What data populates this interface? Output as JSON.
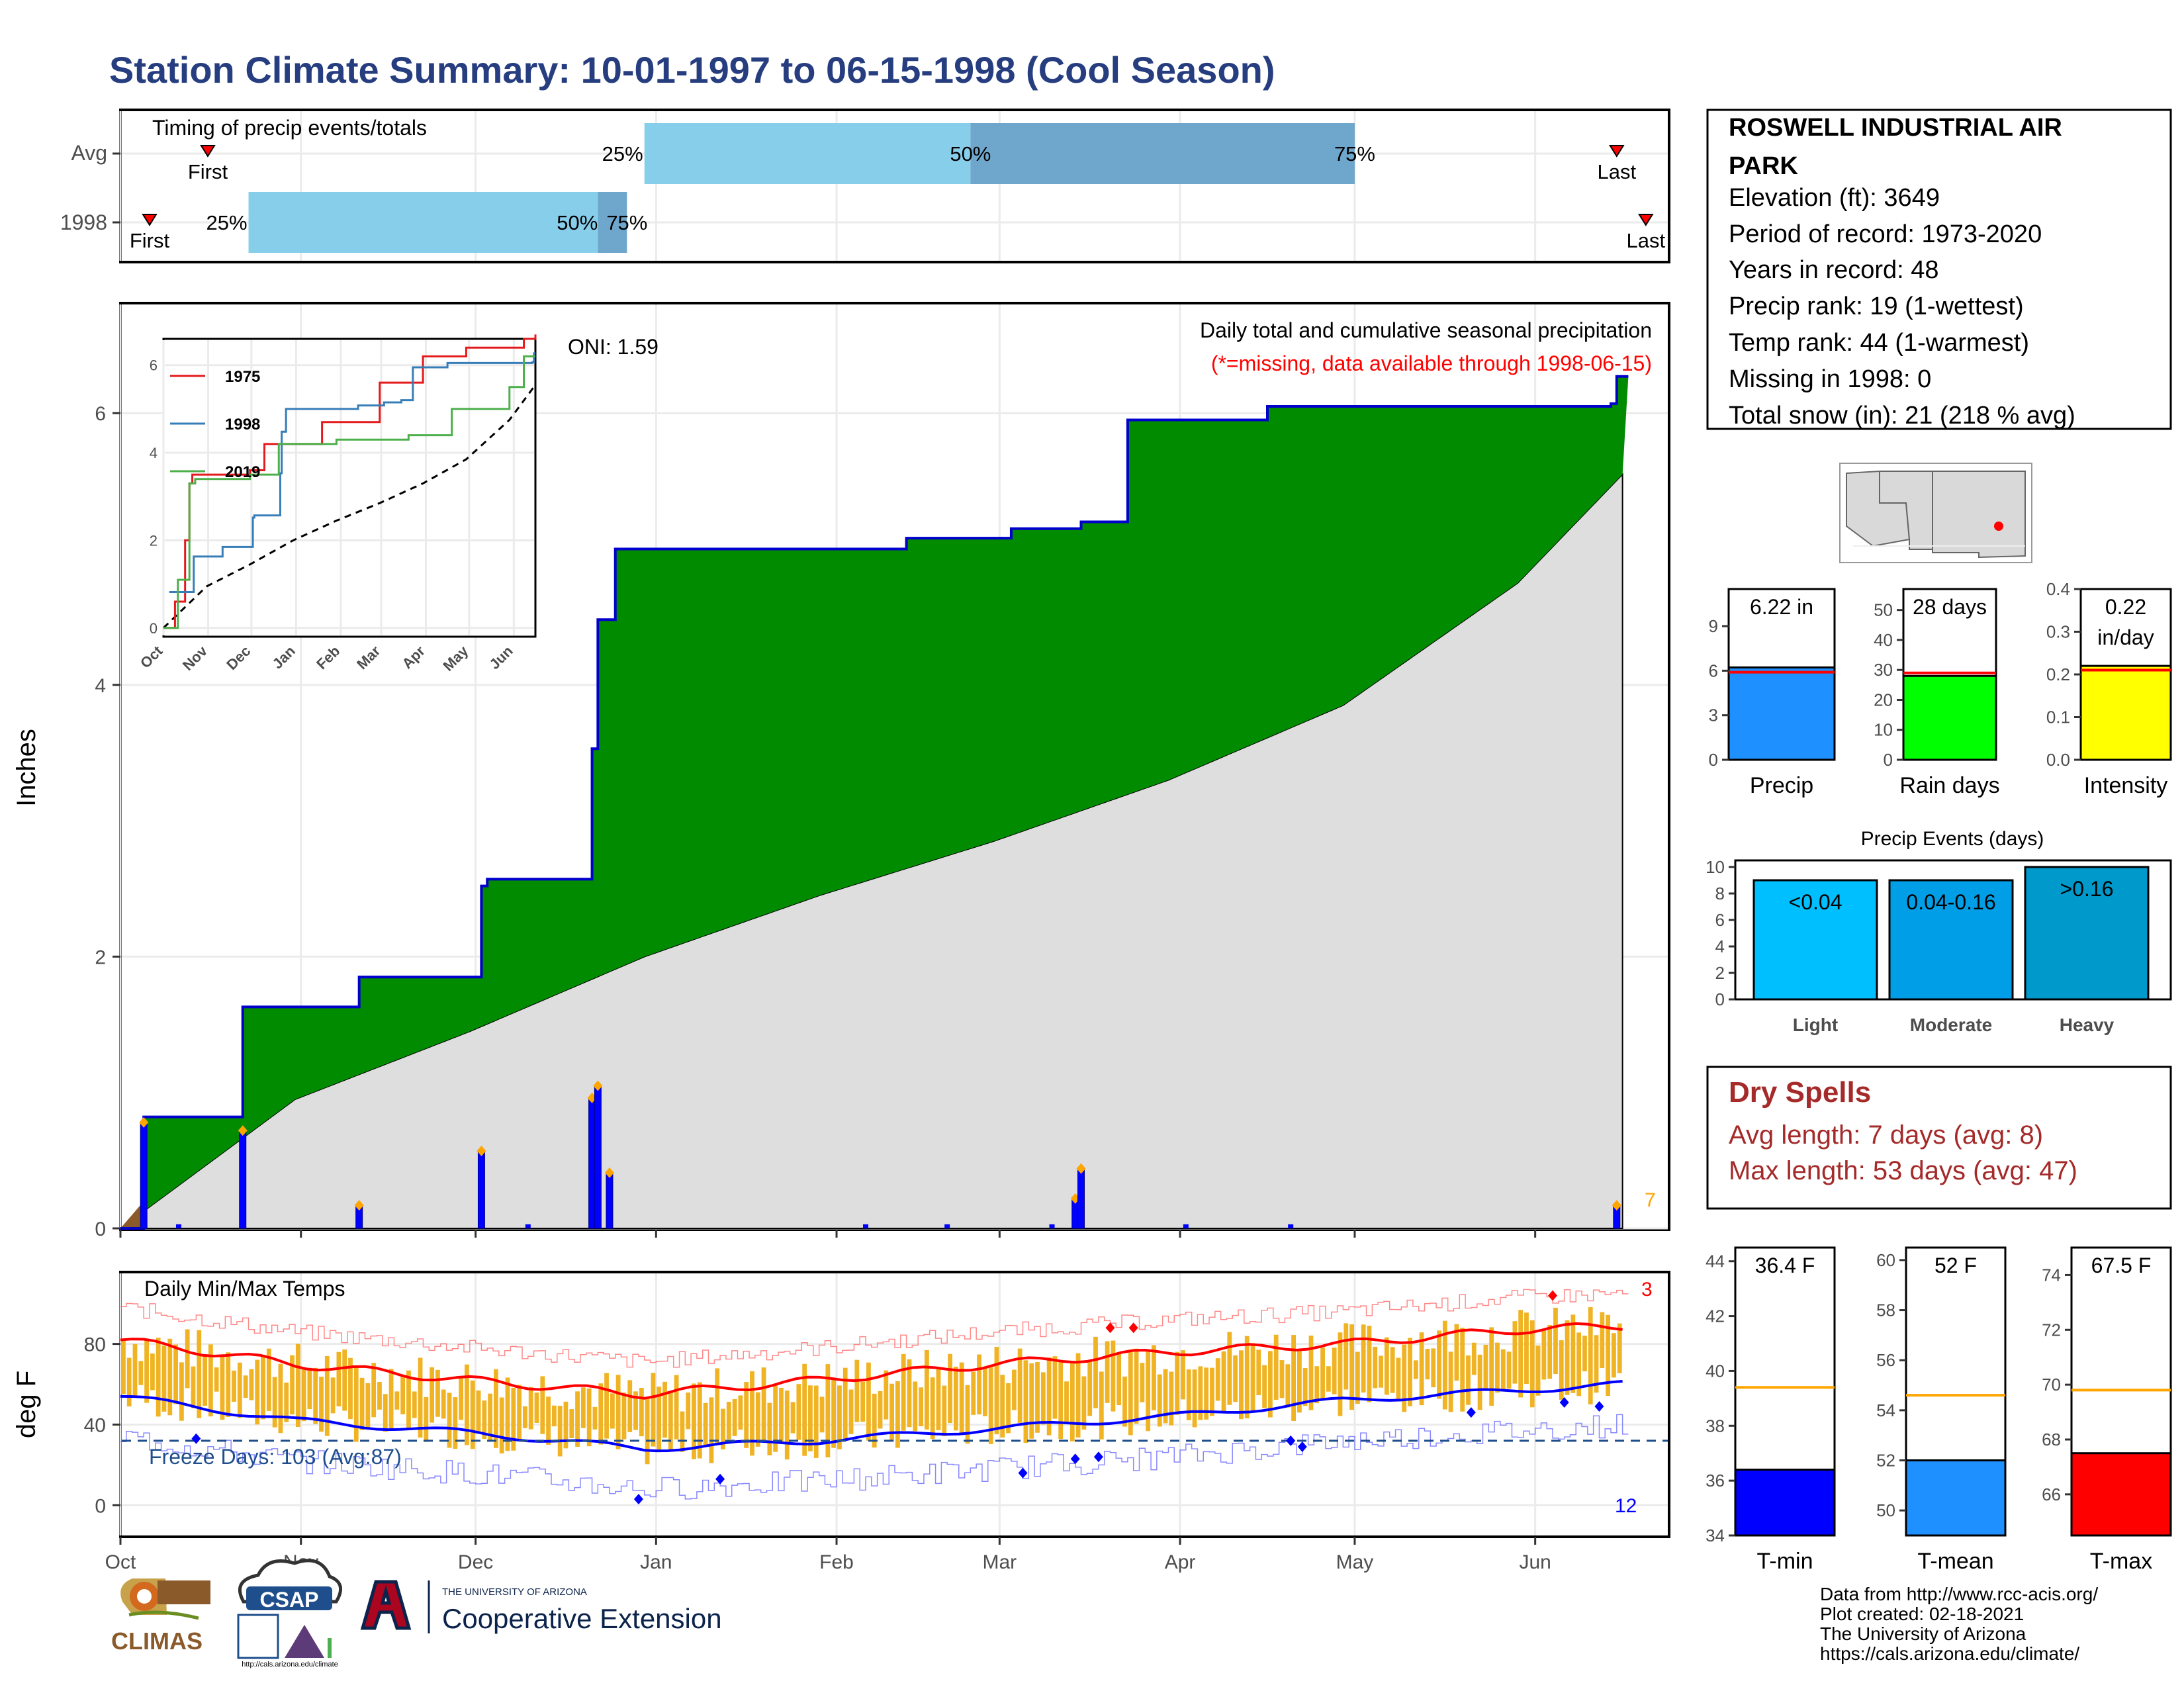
{
  "page": {
    "title": "Station Climate Summary: 10-01-1997 to 06-15-1998 (Cool Season)",
    "title_color": "#263e80"
  },
  "timing": {
    "panel_title": "Timing of precip events/totals",
    "rows": [
      {
        "label": "Avg",
        "q25": "25%",
        "q50": "50%",
        "q75": "75%",
        "first": "First",
        "last": "Last",
        "first_day": 15,
        "p25_day": 90,
        "p50_day": 146,
        "p75_day": 212,
        "last_day": 257
      },
      {
        "label": "1998",
        "q25": "25%",
        "q50": "50%",
        "q75": "75%",
        "first": "First",
        "last": "Last",
        "first_day": 5,
        "p25_day": 22,
        "p50_day": 82,
        "p75_day": 87,
        "last_day": 262
      }
    ]
  },
  "station": {
    "name": "ROSWELL INDUSTRIAL AIR PARK",
    "lines": [
      "Elevation (ft): 3649",
      "Period of record: 1973-2020",
      "Years in record: 48",
      "Precip rank: 19 (1-wettest)",
      "Temp rank: 44 (1-warmest)",
      "Missing in 1998: 0",
      "Total snow (in): 21 (218 % avg)"
    ]
  },
  "precip_main": {
    "ylabel": "Inches",
    "title": "Daily total and cumulative seasonal precipitation",
    "subtitle": "(*=missing, data available through 1998-06-15)",
    "oni": "ONI: 1.59",
    "corner_count": "7",
    "yticks": [
      "0",
      "2",
      "4",
      "6"
    ]
  },
  "inset": {
    "legend": [
      "1975",
      "1998",
      "2019"
    ],
    "colors": {
      "1975": "#e41a1c",
      "1998": "#377eb8",
      "2019": "#4daf4a"
    },
    "yticks": [
      "0",
      "2",
      "4",
      "6"
    ],
    "xticks": [
      "Oct",
      "Nov",
      "Dec",
      "Jan",
      "Feb",
      "Mar",
      "Apr",
      "May",
      "Jun"
    ]
  },
  "temps": {
    "title": "Daily Min/Max Temps",
    "ylabel": "deg F",
    "freeze_label": "Freeze Days: 103 (Avg:87)",
    "hot_count": "3",
    "cold_count": "12",
    "yticks": [
      "0",
      "40",
      "80"
    ]
  },
  "months": [
    "Oct",
    "Nov",
    "Dec",
    "Jan",
    "Feb",
    "Mar",
    "Apr",
    "May",
    "Jun"
  ],
  "bars": {
    "precip": {
      "value_label": "6.22 in",
      "name": "Precip",
      "yticks": [
        "0",
        "3",
        "6",
        "9"
      ]
    },
    "raindays": {
      "value_label": "28 days",
      "name": "Rain days",
      "yticks": [
        "0",
        "10",
        "20",
        "30",
        "40",
        "50"
      ]
    },
    "intensity": {
      "value_label": "0.22",
      "value_label2": "in/day",
      "name": "Intensity",
      "yticks": [
        "0.0",
        "0.1",
        "0.2",
        "0.3",
        "0.4"
      ]
    }
  },
  "events": {
    "title": "Precip Events (days)",
    "yticks": [
      "0",
      "2",
      "4",
      "6",
      "8",
      "10"
    ],
    "categories": [
      "Light",
      "Moderate",
      "Heavy"
    ],
    "labels": [
      "<0.04",
      "0.04-0.16",
      ">0.16"
    ]
  },
  "dry_spells": {
    "title": "Dry Spells",
    "avg": "Avg length: 7 days (avg: 8)",
    "max": "Max length: 53 days (avg: 47)",
    "color": "#a52a2a"
  },
  "temp_bars": {
    "tmin": {
      "label": "36.4 F",
      "name": "T-min",
      "yticks": [
        "34",
        "36",
        "38",
        "40",
        "42",
        "44"
      ]
    },
    "tmean": {
      "label": "52 F",
      "name": "T-mean",
      "yticks": [
        "50",
        "52",
        "54",
        "56",
        "58",
        "60"
      ]
    },
    "tmax": {
      "label": "67.5 F",
      "name": "T-max",
      "yticks": [
        "66",
        "68",
        "70",
        "72",
        "74"
      ]
    }
  },
  "footer": {
    "lines": [
      "Data from http://www.rcc-acis.org/",
      "Plot created: 02-18-2021",
      "The University of Arizona",
      "https://cals.arizona.edu/climate/"
    ],
    "climas": "CLIMAS",
    "csap": "CSAP",
    "csap_url": "http://cals.arizona.edu/climate",
    "ua_top": "THE UNIVERSITY OF ARIZONA",
    "ua_bottom": "Cooperative Extension"
  },
  "chart_data": [
    {
      "type": "bar",
      "title": "Timing of precip events/totals",
      "categories": [
        "Avg",
        "1998"
      ],
      "series": [
        {
          "name": "25%",
          "values": [
            "1997-12-28",
            "1997-10-23"
          ]
        },
        {
          "name": "50%",
          "values": [
            "1998-02-23",
            "1997-12-22"
          ]
        },
        {
          "name": "75%",
          "values": [
            "1998-04-30",
            "1997-12-27"
          ]
        }
      ]
    },
    {
      "type": "area",
      "title": "Daily total and cumulative seasonal precipitation",
      "ylabel": "Inches",
      "ylim": [
        0,
        6.8
      ],
      "xticks": [
        "Oct",
        "Nov",
        "Dec",
        "Jan",
        "Feb",
        "Mar",
        "Apr",
        "May",
        "Jun"
      ],
      "series": [
        {
          "values": [
            [
              4,
              0.82
            ],
            [
              21,
              1.63
            ],
            [
              41,
              1.85
            ],
            [
              62,
              2.52
            ],
            [
              63,
              2.57
            ],
            [
              81,
              3.53
            ],
            [
              82,
              4.48
            ],
            [
              85,
              5.0
            ],
            [
              135,
              5.08
            ],
            [
              153,
              5.15
            ],
            [
              165,
              5.2
            ],
            [
              173,
              5.95
            ],
            [
              197,
              6.05
            ],
            [
              256,
              6.07
            ],
            [
              257,
              6.27
            ]
          ]
        },
        {
          "values": [
            [
              0,
              0
            ],
            [
              30,
              0.95
            ],
            [
              60,
              1.45
            ],
            [
              90,
              2.0
            ],
            [
              120,
              2.45
            ],
            [
              150,
              2.85
            ],
            [
              180,
              3.3
            ],
            [
              210,
              3.85
            ],
            [
              240,
              4.75
            ],
            [
              258,
              5.55
            ]
          ]
        }
      ],
      "daily": [
        [
          4,
          0.78
        ],
        [
          21,
          0.72
        ],
        [
          41,
          0.17
        ],
        [
          62,
          0.57
        ],
        [
          81,
          0.96
        ],
        [
          82,
          1.05
        ],
        [
          84,
          0.41
        ],
        [
          164,
          0.22
        ],
        [
          165,
          0.44
        ],
        [
          257,
          0.17
        ]
      ]
    },
    {
      "type": "line",
      "ylabel": "deg F",
      "ylim": [
        -15,
        115
      ],
      "xticks": [
        "Oct",
        "Nov",
        "Dec",
        "Jan",
        "Feb",
        "Mar",
        "Apr",
        "May",
        "Jun"
      ],
      "series": [
        {
          "values": [
            [
              0,
              82
            ],
            [
              30,
              70
            ],
            [
              60,
              62
            ],
            [
              90,
              55
            ],
            [
              120,
              62
            ],
            [
              150,
              70
            ],
            [
              180,
              76
            ],
            [
              210,
              80
            ],
            [
              240,
              87
            ],
            [
              258,
              89
            ]
          ]
        },
        {
          "values": [
            [
              0,
              54
            ],
            [
              30,
              42
            ],
            [
              60,
              36
            ],
            [
              90,
              28
            ],
            [
              120,
              32
            ],
            [
              150,
              38
            ],
            [
              180,
              44
            ],
            [
              210,
              52
            ],
            [
              240,
              57
            ],
            [
              258,
              60
            ]
          ]
        }
      ]
    },
    {
      "type": "bar",
      "categories": [
        "Precip"
      ],
      "values": [
        6.22
      ],
      "ylim": [
        0,
        11.5
      ],
      "reference": 5.9
    },
    {
      "type": "bar",
      "categories": [
        "Rain days"
      ],
      "values": [
        28
      ],
      "ylim": [
        0,
        57
      ],
      "reference": 29
    },
    {
      "type": "bar",
      "categories": [
        "Intensity"
      ],
      "values": [
        0.22
      ],
      "ylim": [
        0,
        0.4
      ],
      "reference": 0.21
    },
    {
      "type": "bar",
      "title": "Precip Events (days)",
      "categories": [
        "Light",
        "Moderate",
        "Heavy"
      ],
      "values": [
        9,
        9,
        10
      ],
      "ylim": [
        0,
        10.5
      ]
    },
    {
      "type": "bar",
      "categories": [
        "T-min"
      ],
      "values": [
        36.4
      ],
      "ylim": [
        34,
        44.5
      ],
      "reference": 39.4
    },
    {
      "type": "bar",
      "categories": [
        "T-mean"
      ],
      "values": [
        52
      ],
      "ylim": [
        49,
        60.5
      ],
      "reference": 54.6
    },
    {
      "type": "bar",
      "categories": [
        "T-max"
      ],
      "values": [
        67.5
      ],
      "ylim": [
        64.5,
        75
      ],
      "reference": 69.8
    }
  ]
}
